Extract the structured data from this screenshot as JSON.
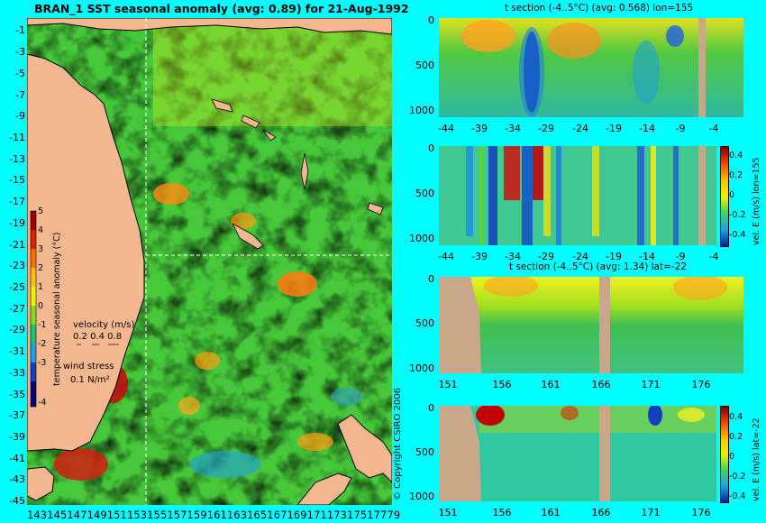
{
  "map": {
    "title": "BRAN_1  SST seasonal anomaly (avg: 0.89) for 21-Aug-1992",
    "lat_ticks": [
      "-1",
      "-3",
      "-5",
      "-7",
      "-9",
      "-11",
      "-13",
      "-15",
      "-17",
      "-19",
      "-21",
      "-23",
      "-25",
      "-27",
      "-29",
      "-31",
      "-33",
      "-35",
      "-37",
      "-39",
      "-41",
      "-43",
      "-45"
    ],
    "lon_ticks": "14314514714915115315515715916116316516716917117317517779",
    "colorbar_ticks": [
      "5",
      "4",
      "3",
      "2",
      "1",
      "0",
      "-1",
      "-2",
      "-3",
      "-4"
    ],
    "colorbar_label": "temperature seasonal anomaly (°C)",
    "velocity_label": "velocity (m/s)",
    "velocity_scale": "0.2 0.4 0.8",
    "wind_label": "wind stress",
    "wind_scale": "0.1 N/m²",
    "copyright": "© Copyright CSIRO 2006"
  },
  "panels": {
    "p1_title": "t section (-4..5°C) (avg: 0.568) lon=155",
    "p3_title": "t section (-4..5°C) (avg: 1.34) lat=-22",
    "depth_ticks": [
      "0",
      "500",
      "1000"
    ],
    "lat_axis": [
      "-44",
      "-39",
      "-34",
      "-29",
      "-24",
      "-19",
      "-14",
      "-9",
      "-4"
    ],
    "lon_axis": [
      "151",
      "156",
      "161",
      "166",
      "171",
      "176"
    ],
    "p2_cbar_ticks": [
      "0.4",
      "0.2",
      "0",
      "-0.2",
      "-0.4"
    ],
    "p2_cbar_label": "vel. E (m/s) lon=155",
    "p4_cbar_ticks": [
      "0.4",
      "0.2",
      "0",
      "-0.2",
      "-0.4"
    ],
    "p4_cbar_label": "vel. E (m/s) lat=-22"
  }
}
